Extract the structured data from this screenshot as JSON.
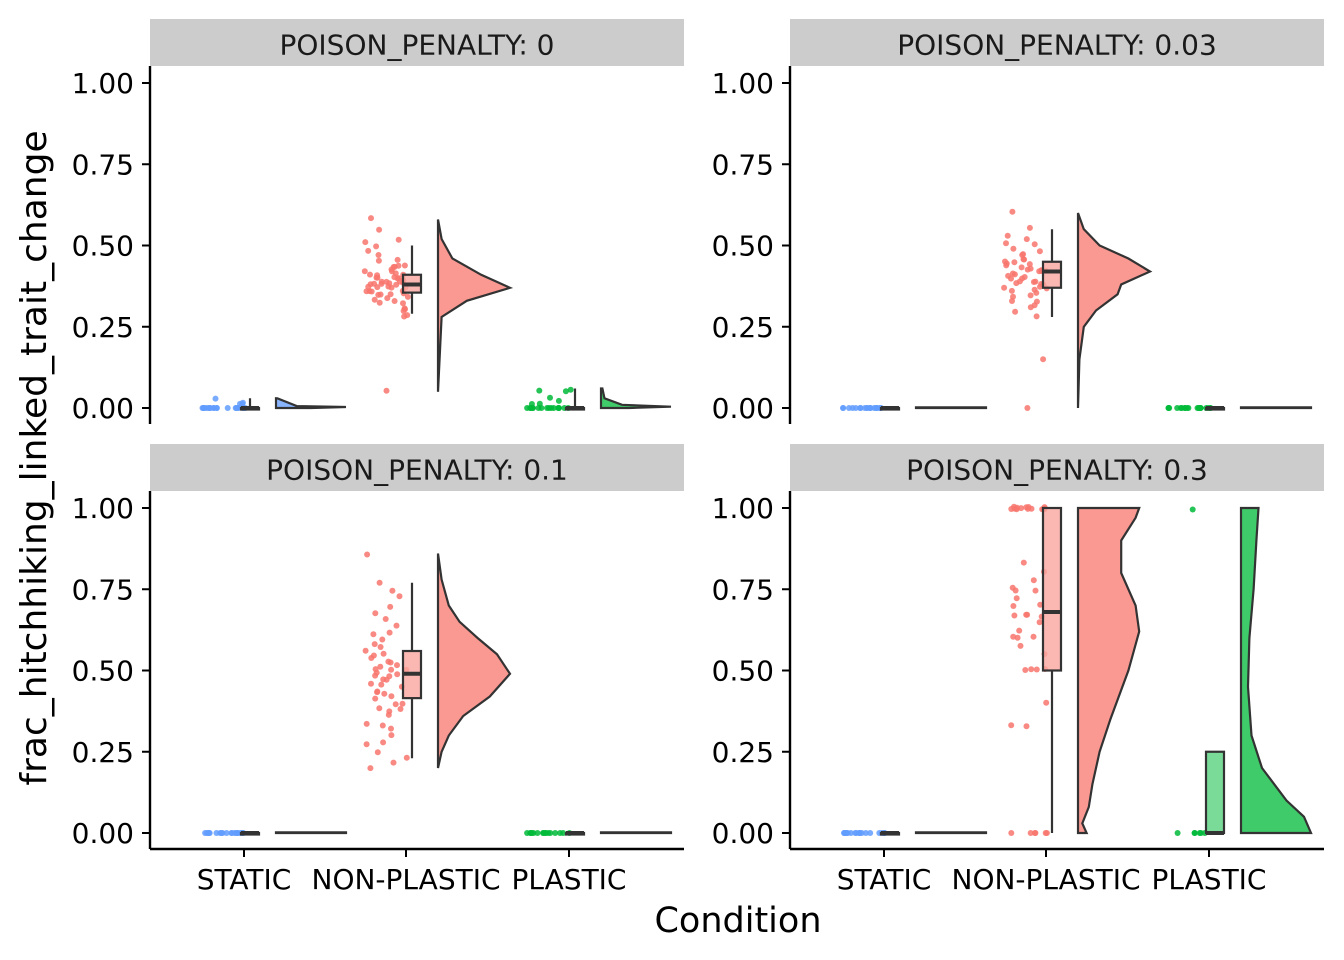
{
  "chart_data": {
    "type": "raincloud",
    "xlabel": "Condition",
    "ylabel": "frac_hitchhiking_linked_trait_change",
    "categories": [
      "STATIC",
      "NON-PLASTIC",
      "PLASTIC"
    ],
    "yticks": [
      "0.00",
      "0.25",
      "0.50",
      "0.75",
      "1.00"
    ],
    "ylim": [
      0,
      1
    ],
    "colors": {
      "STATIC": "#619CFF",
      "NON-PLASTIC": "#F8766D",
      "PLASTIC": "#00BA38"
    },
    "panels": [
      {
        "strip": "POISON_PENALTY: 0",
        "groups": [
          {
            "category": "STATIC",
            "min": 0,
            "q1": 0,
            "median": 0,
            "q3": 0,
            "max": 0.03,
            "density_range": [
              0,
              0.03
            ],
            "density": [
              {
                "y": 0.0,
                "w": 0.5
              },
              {
                "y": 0.003,
                "w": 1.0
              },
              {
                "y": 0.006,
                "w": 0.3
              },
              {
                "y": 0.03,
                "w": 0.02
              }
            ],
            "points": [
              0,
              0,
              0,
              0,
              0,
              0,
              0,
              0,
              0,
              0,
              0,
              0,
              0,
              0,
              0,
              0,
              0,
              0,
              0,
              0,
              0.01,
              0.01,
              0.02,
              0.03
            ]
          },
          {
            "category": "NON-PLASTIC",
            "min": 0.29,
            "q1": 0.355,
            "median": 0.38,
            "q3": 0.41,
            "max": 0.5,
            "density_range": [
              0.05,
              0.58
            ],
            "density": [
              {
                "y": 0.05,
                "w": 0.0
              },
              {
                "y": 0.28,
                "w": 0.05
              },
              {
                "y": 0.33,
                "w": 0.4
              },
              {
                "y": 0.37,
                "w": 1.0
              },
              {
                "y": 0.41,
                "w": 0.6
              },
              {
                "y": 0.46,
                "w": 0.2
              },
              {
                "y": 0.52,
                "w": 0.05
              },
              {
                "y": 0.58,
                "w": 0.0
              }
            ],
            "points": [
              0.05,
              0.28,
              0.29,
              0.3,
              0.31,
              0.32,
              0.33,
              0.33,
              0.34,
              0.34,
              0.35,
              0.35,
              0.35,
              0.36,
              0.36,
              0.36,
              0.37,
              0.37,
              0.37,
              0.37,
              0.38,
              0.38,
              0.38,
              0.38,
              0.38,
              0.39,
              0.39,
              0.39,
              0.39,
              0.4,
              0.4,
              0.4,
              0.4,
              0.41,
              0.41,
              0.41,
              0.42,
              0.42,
              0.43,
              0.43,
              0.44,
              0.44,
              0.45,
              0.46,
              0.47,
              0.48,
              0.5,
              0.51,
              0.52,
              0.55,
              0.58,
              0.3,
              0.32,
              0.36,
              0.37,
              0.39,
              0.41,
              0.43,
              0.35,
              0.4
            ]
          },
          {
            "category": "PLASTIC",
            "min": 0,
            "q1": 0,
            "median": 0,
            "q3": 0,
            "max": 0.06,
            "density_range": [
              0,
              0.06
            ],
            "density": [
              {
                "y": 0.0,
                "w": 0.4
              },
              {
                "y": 0.004,
                "w": 1.0
              },
              {
                "y": 0.01,
                "w": 0.3
              },
              {
                "y": 0.03,
                "w": 0.05
              },
              {
                "y": 0.06,
                "w": 0.02
              }
            ],
            "points": [
              0,
              0,
              0,
              0,
              0,
              0,
              0,
              0,
              0,
              0,
              0,
              0,
              0,
              0,
              0,
              0,
              0.01,
              0.01,
              0.02,
              0.03,
              0.05,
              0.05,
              0.06
            ]
          }
        ]
      },
      {
        "strip": "POISON_PENALTY: 0.03",
        "groups": [
          {
            "category": "STATIC",
            "min": 0,
            "q1": 0,
            "median": 0,
            "q3": 0,
            "max": 0,
            "density_range": [
              0,
              0.002
            ],
            "density": [
              {
                "y": 0.0,
                "w": 1.0
              },
              {
                "y": 0.002,
                "w": 1.0
              }
            ],
            "points": [
              0,
              0,
              0,
              0,
              0,
              0,
              0,
              0,
              0,
              0,
              0,
              0,
              0,
              0,
              0,
              0,
              0,
              0,
              0,
              0
            ]
          },
          {
            "category": "NON-PLASTIC",
            "min": 0.28,
            "q1": 0.37,
            "median": 0.42,
            "q3": 0.45,
            "max": 0.55,
            "density_range": [
              0,
              0.6
            ],
            "density": [
              {
                "y": 0.0,
                "w": 0.0
              },
              {
                "y": 0.15,
                "w": 0.02
              },
              {
                "y": 0.25,
                "w": 0.08
              },
              {
                "y": 0.3,
                "w": 0.25
              },
              {
                "y": 0.35,
                "w": 0.55
              },
              {
                "y": 0.38,
                "w": 0.6
              },
              {
                "y": 0.42,
                "w": 1.0
              },
              {
                "y": 0.46,
                "w": 0.7
              },
              {
                "y": 0.5,
                "w": 0.3
              },
              {
                "y": 0.55,
                "w": 0.08
              },
              {
                "y": 0.6,
                "w": 0.0
              }
            ],
            "points": [
              0,
              0.15,
              0.28,
              0.3,
              0.31,
              0.32,
              0.33,
              0.34,
              0.35,
              0.35,
              0.36,
              0.36,
              0.37,
              0.37,
              0.37,
              0.38,
              0.38,
              0.38,
              0.39,
              0.39,
              0.4,
              0.4,
              0.4,
              0.41,
              0.41,
              0.41,
              0.42,
              0.42,
              0.42,
              0.42,
              0.43,
              0.43,
              0.43,
              0.44,
              0.44,
              0.45,
              0.45,
              0.46,
              0.46,
              0.47,
              0.48,
              0.49,
              0.5,
              0.51,
              0.52,
              0.53,
              0.55,
              0.6,
              0.33,
              0.39,
              0.44,
              0.47
            ]
          },
          {
            "category": "PLASTIC",
            "min": 0,
            "q1": 0,
            "median": 0,
            "q3": 0,
            "max": 0,
            "density_range": [
              0,
              0.002
            ],
            "density": [
              {
                "y": 0.0,
                "w": 1.0
              },
              {
                "y": 0.002,
                "w": 1.0
              }
            ],
            "points": [
              0,
              0,
              0,
              0,
              0,
              0,
              0,
              0,
              0,
              0,
              0,
              0,
              0,
              0,
              0,
              0,
              0,
              0,
              0,
              0
            ]
          }
        ]
      },
      {
        "strip": "POISON_PENALTY: 0.1",
        "groups": [
          {
            "category": "STATIC",
            "min": 0,
            "q1": 0,
            "median": 0,
            "q3": 0,
            "max": 0,
            "density_range": [
              0,
              0.002
            ],
            "density": [
              {
                "y": 0.0,
                "w": 1.0
              },
              {
                "y": 0.002,
                "w": 1.0
              }
            ],
            "points": [
              0,
              0,
              0,
              0,
              0,
              0,
              0,
              0,
              0,
              0,
              0,
              0,
              0,
              0,
              0,
              0,
              0,
              0,
              0,
              0
            ]
          },
          {
            "category": "NON-PLASTIC",
            "min": 0.23,
            "q1": 0.415,
            "median": 0.49,
            "q3": 0.56,
            "max": 0.77,
            "density_range": [
              0.2,
              0.86
            ],
            "density": [
              {
                "y": 0.2,
                "w": 0.0
              },
              {
                "y": 0.25,
                "w": 0.05
              },
              {
                "y": 0.3,
                "w": 0.15
              },
              {
                "y": 0.36,
                "w": 0.35
              },
              {
                "y": 0.42,
                "w": 0.72
              },
              {
                "y": 0.49,
                "w": 1.0
              },
              {
                "y": 0.55,
                "w": 0.82
              },
              {
                "y": 0.6,
                "w": 0.55
              },
              {
                "y": 0.65,
                "w": 0.3
              },
              {
                "y": 0.7,
                "w": 0.15
              },
              {
                "y": 0.78,
                "w": 0.05
              },
              {
                "y": 0.86,
                "w": 0.0
              }
            ],
            "points": [
              0.2,
              0.22,
              0.23,
              0.25,
              0.27,
              0.28,
              0.3,
              0.32,
              0.33,
              0.34,
              0.36,
              0.37,
              0.38,
              0.4,
              0.4,
              0.41,
              0.42,
              0.43,
              0.44,
              0.45,
              0.46,
              0.47,
              0.47,
              0.48,
              0.48,
              0.49,
              0.49,
              0.5,
              0.5,
              0.51,
              0.52,
              0.53,
              0.54,
              0.55,
              0.56,
              0.57,
              0.58,
              0.6,
              0.62,
              0.64,
              0.66,
              0.68,
              0.7,
              0.73,
              0.75,
              0.77,
              0.86,
              0.43,
              0.46,
              0.52,
              0.55,
              0.61,
              0.38,
              0.5
            ]
          },
          {
            "category": "PLASTIC",
            "min": 0,
            "q1": 0,
            "median": 0,
            "q3": 0,
            "max": 0,
            "density_range": [
              0,
              0.002
            ],
            "density": [
              {
                "y": 0.0,
                "w": 1.0
              },
              {
                "y": 0.002,
                "w": 1.0
              }
            ],
            "points": [
              0,
              0,
              0,
              0,
              0,
              0,
              0,
              0,
              0,
              0,
              0,
              0,
              0,
              0,
              0,
              0
            ]
          }
        ]
      },
      {
        "strip": "POISON_PENALTY: 0.3",
        "groups": [
          {
            "category": "STATIC",
            "min": 0,
            "q1": 0,
            "median": 0,
            "q3": 0,
            "max": 0,
            "density_range": [
              0,
              0.002
            ],
            "density": [
              {
                "y": 0.0,
                "w": 1.0
              },
              {
                "y": 0.002,
                "w": 1.0
              }
            ],
            "points": [
              0,
              0,
              0,
              0,
              0,
              0,
              0,
              0,
              0,
              0,
              0,
              0,
              0,
              0,
              0,
              0,
              0,
              0,
              0,
              0
            ]
          },
          {
            "category": "NON-PLASTIC",
            "min": 0,
            "q1": 0.5,
            "median": 0.68,
            "q3": 1.0,
            "max": 1.0,
            "density_range": [
              0,
              1
            ],
            "density": [
              {
                "y": 0.0,
                "w": 0.12
              },
              {
                "y": 0.03,
                "w": 0.06
              },
              {
                "y": 0.08,
                "w": 0.15
              },
              {
                "y": 0.15,
                "w": 0.2
              },
              {
                "y": 0.25,
                "w": 0.3
              },
              {
                "y": 0.35,
                "w": 0.45
              },
              {
                "y": 0.5,
                "w": 0.7
              },
              {
                "y": 0.62,
                "w": 0.85
              },
              {
                "y": 0.7,
                "w": 0.8
              },
              {
                "y": 0.8,
                "w": 0.6
              },
              {
                "y": 0.9,
                "w": 0.6
              },
              {
                "y": 0.97,
                "w": 0.8
              },
              {
                "y": 1.0,
                "w": 0.85
              }
            ],
            "points": [
              0,
              0,
              0,
              0,
              0,
              0,
              0.33,
              0.33,
              0.4,
              0.5,
              0.5,
              0.5,
              0.55,
              0.58,
              0.6,
              0.6,
              0.62,
              0.65,
              0.67,
              0.67,
              0.67,
              0.7,
              0.7,
              0.72,
              0.75,
              0.75,
              0.78,
              0.8,
              0.83,
              1,
              1,
              1,
              1,
              1,
              1,
              1,
              1,
              1,
              1,
              1,
              1,
              1,
              1,
              1,
              0.67,
              0.6,
              0.75,
              0.5
            ]
          },
          {
            "category": "PLASTIC",
            "min": 0,
            "q1": 0,
            "median": 0,
            "q3": 0.25,
            "max": 0.25,
            "density_range": [
              0,
              1
            ],
            "density": [
              {
                "y": 0.0,
                "w": 1.0
              },
              {
                "y": 0.05,
                "w": 0.9
              },
              {
                "y": 0.1,
                "w": 0.65
              },
              {
                "y": 0.2,
                "w": 0.3
              },
              {
                "y": 0.3,
                "w": 0.15
              },
              {
                "y": 0.45,
                "w": 0.1
              },
              {
                "y": 0.6,
                "w": 0.12
              },
              {
                "y": 0.75,
                "w": 0.18
              },
              {
                "y": 0.9,
                "w": 0.22
              },
              {
                "y": 1.0,
                "w": 0.25
              }
            ],
            "points": [
              0,
              0,
              0,
              0,
              0,
              0,
              1
            ]
          }
        ]
      }
    ]
  }
}
